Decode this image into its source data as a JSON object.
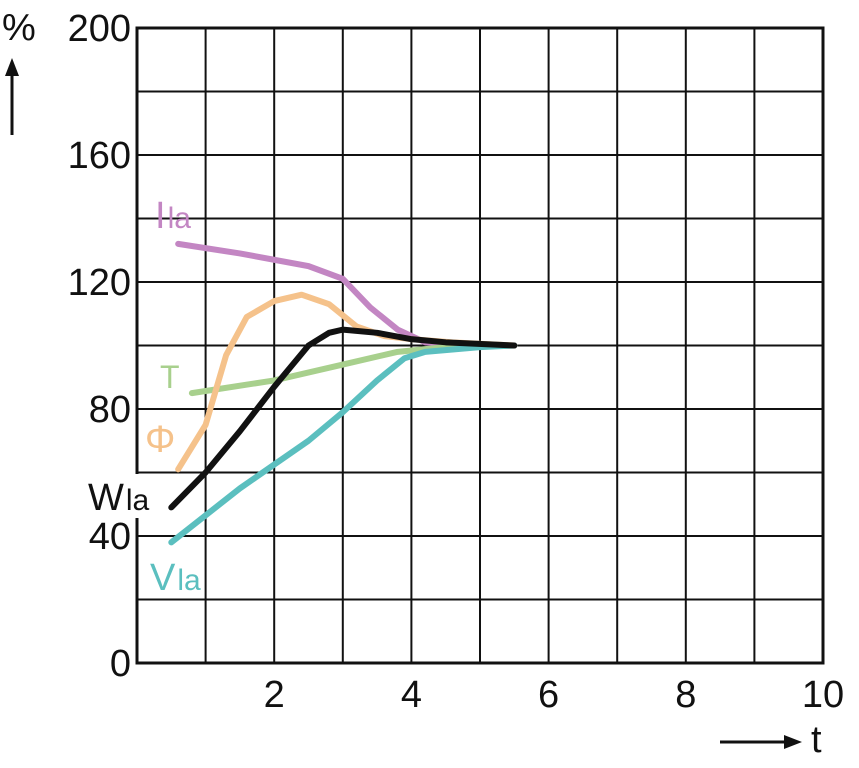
{
  "chart_data": {
    "type": "line",
    "ylabel": "%",
    "xlabel": "t",
    "xlim": [
      0,
      10
    ],
    "ylim": [
      0,
      200
    ],
    "x_ticks": [
      "2",
      "4",
      "6",
      "8",
      "10"
    ],
    "y_ticks": [
      "0",
      "40",
      "80",
      "120",
      "160",
      "200"
    ],
    "grid": true,
    "series": [
      {
        "name": "Ila",
        "label_main": "I",
        "label_sub": "la",
        "color": "#c386c3",
        "points": [
          [
            0.6,
            132
          ],
          [
            1.5,
            129
          ],
          [
            2.5,
            125
          ],
          [
            3.0,
            121
          ],
          [
            3.4,
            112
          ],
          [
            3.8,
            105
          ],
          [
            4.2,
            101
          ],
          [
            5.0,
            100
          ],
          [
            5.5,
            100
          ]
        ]
      },
      {
        "name": "T",
        "label_main": "T",
        "label_sub": "",
        "color": "#a8d08d",
        "points": [
          [
            0.8,
            85
          ],
          [
            2.0,
            89
          ],
          [
            3.0,
            94
          ],
          [
            3.8,
            98
          ],
          [
            4.5,
            99.5
          ],
          [
            5.5,
            100
          ]
        ]
      },
      {
        "name": "Φ",
        "label_main": "Φ",
        "label_sub": "",
        "color": "#f5c28b",
        "points": [
          [
            0.6,
            61
          ],
          [
            1.0,
            75
          ],
          [
            1.3,
            97
          ],
          [
            1.6,
            109
          ],
          [
            2.0,
            114
          ],
          [
            2.4,
            116
          ],
          [
            2.8,
            113
          ],
          [
            3.2,
            106
          ],
          [
            3.6,
            103
          ],
          [
            4.0,
            102
          ],
          [
            4.6,
            101
          ],
          [
            5.5,
            100
          ]
        ]
      },
      {
        "name": "Wla",
        "label_main": "W",
        "label_sub": "la",
        "color": "#111111",
        "points": [
          [
            0.5,
            49
          ],
          [
            1.0,
            60
          ],
          [
            1.5,
            73
          ],
          [
            2.0,
            87
          ],
          [
            2.5,
            100
          ],
          [
            2.8,
            104
          ],
          [
            3.0,
            105
          ],
          [
            3.5,
            104
          ],
          [
            4.0,
            102
          ],
          [
            4.5,
            101
          ],
          [
            5.5,
            100
          ]
        ]
      },
      {
        "name": "Vla",
        "label_main": "V",
        "label_sub": "la",
        "color": "#5bbfbf",
        "points": [
          [
            0.5,
            38
          ],
          [
            1.5,
            55
          ],
          [
            2.5,
            70
          ],
          [
            3.0,
            79
          ],
          [
            3.5,
            89
          ],
          [
            3.9,
            96
          ],
          [
            4.2,
            98
          ],
          [
            5.0,
            99.5
          ],
          [
            5.5,
            100
          ]
        ]
      }
    ]
  }
}
